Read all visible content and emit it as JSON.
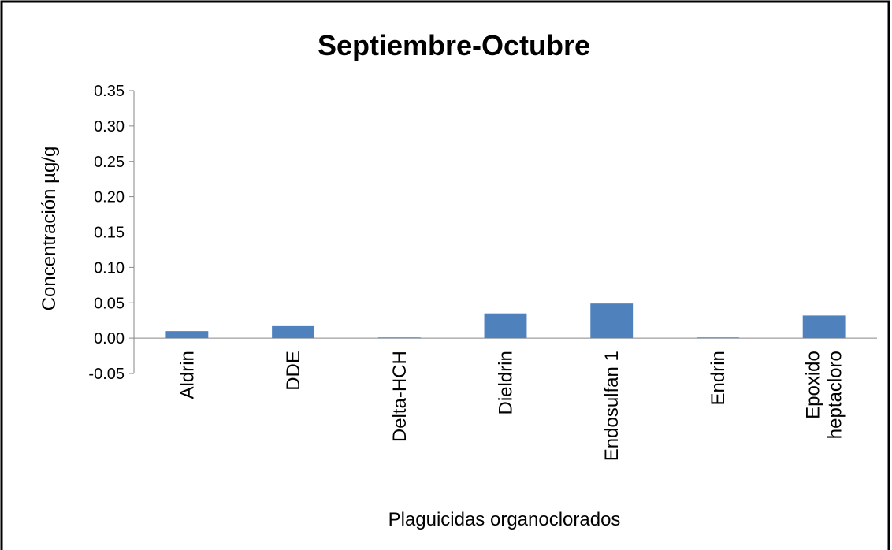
{
  "chart_data": {
    "type": "bar",
    "title": "Septiembre-Octubre",
    "x_label": "Plaguicidas organoclorados",
    "y_label": "Concentración µg/g",
    "categories": [
      "Aldrin",
      "DDE",
      "Delta-HCH",
      "Dieldrin",
      "Endosulfan 1",
      "Endrin",
      "Epoxido heptacloro"
    ],
    "values": [
      0.01,
      0.017,
      0.001,
      0.035,
      0.049,
      0.001,
      0.032
    ],
    "color": "#4f81bd",
    "ylim": [
      -0.05,
      0.35
    ],
    "yticks": [
      {
        "value": -0.05,
        "label": "-0.05"
      },
      {
        "value": 0,
        "label": "0.00"
      },
      {
        "value": 0.05,
        "label": "0.05"
      },
      {
        "value": 0.1,
        "label": "0.10"
      },
      {
        "value": 0.15,
        "label": "0.15"
      },
      {
        "value": 0.2,
        "label": "0.20"
      },
      {
        "value": 0.25,
        "label": "0.25"
      },
      {
        "value": 0.3,
        "label": "0.30"
      },
      {
        "value": 0.35,
        "label": "0.35"
      }
    ],
    "grid": false
  }
}
